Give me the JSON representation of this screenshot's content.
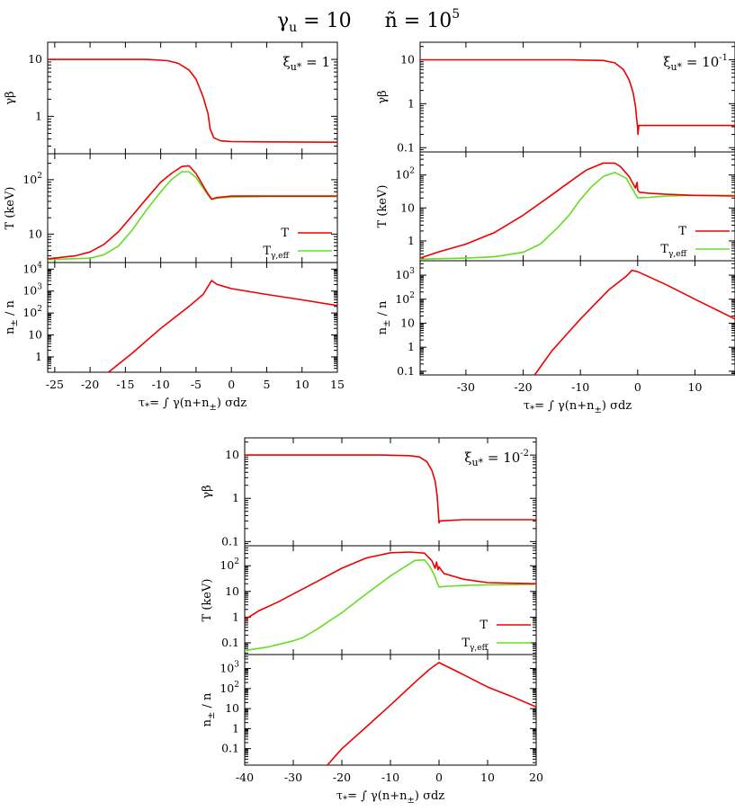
{
  "figure_title": {
    "gamma_symbol": "γ",
    "gamma_sub": "u",
    "gamma_val": " = 10",
    "n_symbol": "ñ",
    "n_text": " = 10",
    "n_exp": "5"
  },
  "colors": {
    "T": "#ee0000",
    "Tgamma": "#66dd22",
    "axis": "#000000"
  },
  "chart_data": [
    {
      "type": "line",
      "id": "A",
      "title": "ξu* = 1",
      "annotation": {
        "base": "ξ",
        "sub": "u*",
        "text": " = 1",
        "exp": ""
      },
      "xlabel": "τ* = ∫ γ(n+n±) σdz",
      "xlim": [
        -26,
        15
      ],
      "xticks": [
        -25,
        -20,
        -15,
        -10,
        -5,
        0,
        5,
        10,
        15
      ],
      "xtick_labels": [
        "-25",
        "-20",
        "-15",
        "-10",
        "-5",
        "0",
        "5",
        "10",
        "15"
      ],
      "legend": {
        "position": "bottom-right",
        "entries": [
          "T",
          "Tγ,eff"
        ]
      },
      "panels": [
        {
          "ylabel": "γβ",
          "yscale": "log",
          "ylim": [
            0.22,
            20
          ],
          "yticks": [
            1,
            10
          ],
          "ytick_labels": [
            "1",
            "10"
          ],
          "series": [
            {
              "name": "γβ",
              "color": "#ee0000",
              "x": [
                -26,
                -12,
                -9,
                -7.5,
                -6,
                -5,
                -4,
                -3.3,
                -3,
                -2.5,
                -1.5,
                0,
                5,
                15
              ],
              "y": [
                10,
                10,
                9.5,
                8.5,
                6.5,
                4.5,
                2.2,
                1.1,
                0.6,
                0.42,
                0.37,
                0.36,
                0.355,
                0.35
              ]
            }
          ]
        },
        {
          "ylabel": "T (keV)",
          "yscale": "log",
          "ylim": [
            3,
            300
          ],
          "yticks": [
            10,
            100
          ],
          "ytick_labels": [
            "10",
            "10²"
          ],
          "series": [
            {
              "name": "T",
              "color": "#ee0000",
              "x": [
                -26,
                -22,
                -20,
                -18,
                -16,
                -14,
                -12,
                -10,
                -8.5,
                -7,
                -6,
                -5,
                -3.5,
                -2.8,
                -2,
                0,
                5,
                15
              ],
              "y": [
                3.5,
                4,
                4.7,
                6.5,
                11,
                22,
                45,
                90,
                130,
                175,
                180,
                130,
                60,
                44,
                47,
                50,
                50,
                50
              ]
            },
            {
              "name": "Tγ,eff",
              "color": "#66dd22",
              "x": [
                -26,
                -20,
                -18,
                -16,
                -14,
                -12,
                -10,
                -8.5,
                -7,
                -6,
                -5,
                -4,
                -3,
                -2.8,
                -2,
                0,
                5,
                15
              ],
              "y": [
                3.4,
                3.6,
                4.2,
                6,
                12,
                28,
                60,
                100,
                140,
                140,
                110,
                70,
                46,
                43,
                46,
                48,
                49,
                49
              ]
            }
          ]
        },
        {
          "ylabel": "n± / n",
          "yscale": "log",
          "ylim": [
            0.2,
            20000
          ],
          "yticks": [
            1,
            10,
            100,
            1000,
            10000
          ],
          "ytick_labels": [
            "1",
            "10",
            "10²",
            "10³",
            "10⁴"
          ],
          "series": [
            {
              "name": "n±/n",
              "color": "#ee0000",
              "x": [
                -17.4,
                -14,
                -10,
                -6,
                -4,
                -2.8,
                -2,
                0,
                5,
                10,
                15
              ],
              "y": [
                0.2,
                1.5,
                20,
                200,
                700,
                3000,
                2000,
                1300,
                700,
                400,
                220
              ]
            }
          ]
        }
      ]
    },
    {
      "type": "line",
      "id": "B",
      "title": "ξu* = 10⁻¹",
      "annotation": {
        "base": "ξ",
        "sub": "u*",
        "text": " = 10",
        "exp": "-1"
      },
      "xlabel": "τ* = ∫ γ(n+n±) σdz",
      "xlim": [
        -38,
        17
      ],
      "xticks": [
        -30,
        -20,
        -10,
        0,
        10
      ],
      "xtick_labels": [
        "-30",
        "-20",
        "-10",
        "0",
        "10"
      ],
      "legend": {
        "position": "bottom-right",
        "entries": [
          "T",
          "Tγ,eff"
        ]
      },
      "panels": [
        {
          "ylabel": "γβ",
          "yscale": "log",
          "ylim": [
            0.08,
            25
          ],
          "yticks": [
            0.1,
            1,
            10
          ],
          "ytick_labels": [
            "0.1",
            "1",
            "10"
          ],
          "series": [
            {
              "name": "γβ",
              "color": "#ee0000",
              "x": [
                -38,
                -12,
                -6,
                -4,
                -2.5,
                -1.5,
                -0.8,
                -0.4,
                -0.2,
                0,
                0.05,
                0.2,
                3,
                17
              ],
              "y": [
                10,
                10,
                9.6,
                8.5,
                6,
                3.5,
                1.8,
                0.9,
                0.5,
                0.28,
                0.2,
                0.32,
                0.32,
                0.32
              ]
            }
          ]
        },
        {
          "ylabel": "T (keV)",
          "yscale": "log",
          "ylim": [
            0.25,
            500
          ],
          "yticks": [
            1,
            10,
            100
          ],
          "ytick_labels": [
            "1",
            "10",
            "10²"
          ],
          "series": [
            {
              "name": "T",
              "color": "#ee0000",
              "x": [
                -38,
                -35,
                -30,
                -25,
                -20,
                -15,
                -12,
                -9,
                -6,
                -4,
                -3,
                -1.5,
                -0.4,
                -0.1,
                0,
                0.3,
                2,
                5,
                10,
                17
              ],
              "y": [
                0.3,
                0.45,
                0.8,
                1.8,
                6,
                25,
                60,
                140,
                230,
                230,
                180,
                90,
                40,
                60,
                35,
                30,
                28,
                26,
                24,
                23
              ]
            },
            {
              "name": "Tγ,eff",
              "color": "#66dd22",
              "x": [
                -38,
                -30,
                -25,
                -20,
                -17,
                -14,
                -12,
                -10,
                -8,
                -6,
                -4,
                -2,
                -1,
                0,
                2,
                5,
                10,
                17
              ],
              "y": [
                0.28,
                0.3,
                0.33,
                0.45,
                0.8,
                2.5,
                6,
                18,
                45,
                90,
                120,
                80,
                40,
                20,
                21,
                23,
                24,
                24
              ]
            }
          ]
        },
        {
          "ylabel": "n± / n",
          "yscale": "log",
          "ylim": [
            0.07,
            4000
          ],
          "yticks": [
            0.1,
            1,
            10,
            100,
            1000
          ],
          "ytick_labels": [
            "0.1",
            "1",
            "10",
            "10²",
            "10³"
          ],
          "series": [
            {
              "name": "n±/n",
              "color": "#ee0000",
              "x": [
                -18,
                -15,
                -10,
                -5,
                -2,
                -1,
                0,
                5,
                10,
                17
              ],
              "y": [
                0.07,
                0.7,
                15,
                250,
                900,
                1600,
                1400,
                400,
                100,
                15
              ]
            }
          ]
        }
      ]
    },
    {
      "type": "line",
      "id": "C",
      "title": "ξu* = 10⁻²",
      "annotation": {
        "base": "ξ",
        "sub": "u*",
        "text": " = 10",
        "exp": "-2"
      },
      "xlabel": "τ* = ∫ γ(n+n±) σdz",
      "xlim": [
        -40,
        20
      ],
      "xticks": [
        -40,
        -30,
        -20,
        -10,
        0,
        10,
        20
      ],
      "xtick_labels": [
        "-40",
        "-30",
        "-20",
        "-10",
        "0",
        "10",
        "20"
      ],
      "legend": {
        "position": "bottom-right",
        "entries": [
          "T",
          "Tγ,eff"
        ]
      },
      "panels": [
        {
          "ylabel": "γβ",
          "yscale": "log",
          "ylim": [
            0.08,
            25
          ],
          "yticks": [
            0.1,
            1,
            10
          ],
          "ytick_labels": [
            "0.1",
            "1",
            "10"
          ],
          "series": [
            {
              "name": "γβ",
              "color": "#ee0000",
              "x": [
                -40,
                -12,
                -6,
                -4,
                -2.5,
                -1.5,
                -0.8,
                -0.4,
                -0.2,
                -0.05,
                0,
                0.2,
                5,
                20
              ],
              "y": [
                10,
                10,
                9.7,
                9,
                7,
                4.5,
                2.5,
                1.2,
                0.6,
                0.35,
                0.27,
                0.3,
                0.32,
                0.32
              ]
            }
          ]
        },
        {
          "ylabel": "T (keV)",
          "yscale": "log",
          "ylim": [
            0.035,
            600
          ],
          "yticks": [
            0.1,
            1,
            10,
            100
          ],
          "ytick_labels": [
            "0.1",
            "1",
            "10",
            "10²"
          ],
          "series": [
            {
              "name": "T",
              "color": "#ee0000",
              "x": [
                -40,
                -37,
                -33,
                -30,
                -25,
                -20,
                -15,
                -10,
                -6,
                -3,
                -1.5,
                -0.8,
                -0.5,
                -0.2,
                0,
                1,
                5,
                10,
                20
              ],
              "y": [
                0.8,
                1.8,
                4,
                8,
                25,
                80,
                200,
                320,
                340,
                310,
                160,
                80,
                140,
                70,
                90,
                50,
                30,
                22,
                20
              ]
            },
            {
              "name": "Tγ,eff",
              "color": "#66dd22",
              "x": [
                -40,
                -35,
                -30,
                -28,
                -25,
                -20,
                -15,
                -10,
                -5,
                -3,
                -2,
                -1,
                -0.3,
                0,
                2,
                5,
                10,
                20
              ],
              "y": [
                0.05,
                0.07,
                0.12,
                0.16,
                0.35,
                1.5,
                8,
                40,
                160,
                170,
                100,
                45,
                20,
                15,
                16,
                17,
                18,
                19
              ]
            }
          ]
        },
        {
          "ylabel": "n± / n",
          "yscale": "log",
          "ylim": [
            0.015,
            5000
          ],
          "yticks": [
            0.1,
            1,
            10,
            100,
            1000
          ],
          "ytick_labels": [
            "0.1",
            "1",
            "10",
            "10²",
            "10³"
          ],
          "series": [
            {
              "name": "n±/n",
              "color": "#ee0000",
              "x": [
                -23,
                -20,
                -15,
                -10,
                -5,
                -2,
                0,
                5,
                10,
                15,
                20
              ],
              "y": [
                0.015,
                0.1,
                1.2,
                15,
                200,
                900,
                2000,
                500,
                120,
                40,
                12
              ]
            }
          ]
        }
      ]
    }
  ]
}
